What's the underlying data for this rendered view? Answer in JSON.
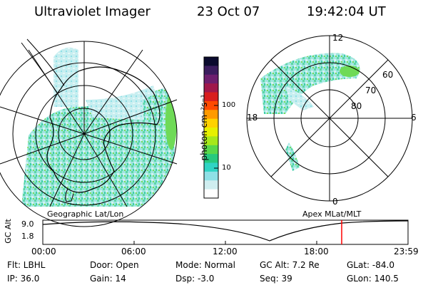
{
  "header": {
    "title": "Ultraviolet Imager",
    "date": "23 Oct 07",
    "time": "19:42:04 UT"
  },
  "colorbar": {
    "label": "photon cm⁻²s⁻¹",
    "ticks": [
      "100",
      "10"
    ],
    "colors": [
      "#0b0b2e",
      "#3b1d5e",
      "#6d1f6e",
      "#a0184b",
      "#d81e1e",
      "#ff4a00",
      "#ff9a00",
      "#ffd200",
      "#e6f000",
      "#a6e81a",
      "#58d84a",
      "#27c97f",
      "#30d4c4",
      "#8ee0e6",
      "#cfeef0",
      "#ffffff"
    ]
  },
  "geo_panel": {
    "label": "Geographic Lat/Lon"
  },
  "mag_panel": {
    "label": "Apex MLat/MLT",
    "mlt_labels": {
      "top": "12",
      "left": "18",
      "right": "6",
      "bottom": "0"
    },
    "lat_labels": [
      "60",
      "70",
      "80"
    ]
  },
  "alt_plot": {
    "ylabel": "GC Alt",
    "yticks": [
      "9.0",
      "1.8"
    ],
    "xticks": [
      "00:00",
      "06:00",
      "12:00",
      "18:00",
      "23:59"
    ],
    "marker_color": "#ff0000"
  },
  "info": {
    "flt": "Flt: LBHL",
    "ip": "IP: 36.0",
    "door": "Door: Open",
    "gain": "Gain: 14",
    "mode": "Mode: Normal",
    "dsp": "Dsp:    -3.0",
    "gcalt": "GC Alt: 7.2 Re",
    "seq": "Seq: 39",
    "glat": "GLat: -84.0",
    "glon": "GLon: 140.5"
  }
}
